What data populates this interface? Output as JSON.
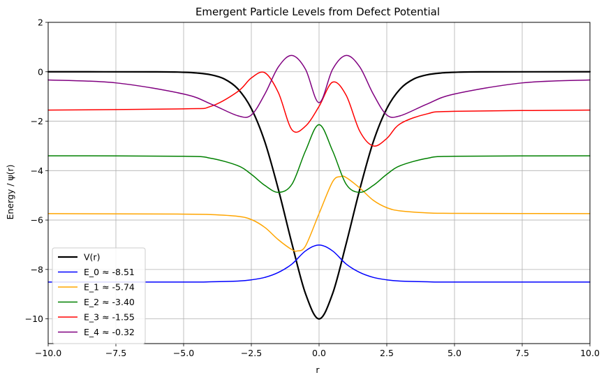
{
  "chart_data": {
    "type": "line",
    "title": "Emergent Particle Levels from Defect Potential",
    "xlabel": "r",
    "ylabel": "Energy / ψ(r)",
    "xlim": [
      -10,
      10
    ],
    "ylim": [
      -11,
      2
    ],
    "xticks": [
      -10,
      -7.5,
      -5,
      -2.5,
      0,
      2.5,
      5,
      7.5,
      10
    ],
    "xtick_labels": [
      "−10.0",
      "−7.5",
      "−5.0",
      "−2.5",
      "0.0",
      "2.5",
      "5.0",
      "7.5",
      "10.0"
    ],
    "yticks": [
      -10,
      -8,
      -6,
      -4,
      -2,
      0,
      2
    ],
    "ytick_labels": [
      "−10",
      "−8",
      "−6",
      "−4",
      "−2",
      "0",
      "2"
    ],
    "grid": true,
    "legend_position": "lower-left",
    "series": [
      {
        "name": "V(r)",
        "color": "#000000",
        "width": 2.2,
        "x": [
          -10,
          -6,
          -5,
          -4.5,
          -4,
          -3.5,
          -3,
          -2.5,
          -2,
          -1.5,
          -1,
          -0.5,
          0,
          0.5,
          1,
          1.5,
          2,
          2.5,
          3,
          3.5,
          4,
          4.5,
          5,
          6,
          10
        ],
        "y": [
          0,
          -0.003,
          -0.02,
          -0.05,
          -0.12,
          -0.29,
          -0.69,
          -1.49,
          -2.84,
          -4.77,
          -6.96,
          -8.98,
          -10,
          -8.98,
          -6.96,
          -4.77,
          -2.84,
          -1.49,
          -0.69,
          -0.29,
          -0.12,
          -0.05,
          -0.02,
          -0.003,
          0
        ]
      },
      {
        "name": "E_0 ≈ -8.51",
        "color": "#0000ff",
        "width": 1.5,
        "x": [
          -10,
          -5,
          -4,
          -3,
          -2.5,
          -2,
          -1.5,
          -1,
          -0.5,
          0,
          0.5,
          1,
          1.5,
          2,
          2.5,
          3,
          4,
          5,
          10
        ],
        "y": [
          -8.51,
          -8.51,
          -8.5,
          -8.47,
          -8.42,
          -8.32,
          -8.12,
          -7.78,
          -7.25,
          -7.01,
          -7.25,
          -7.78,
          -8.12,
          -8.32,
          -8.42,
          -8.47,
          -8.5,
          -8.51,
          -8.51
        ]
      },
      {
        "name": "E_1 ≈ -5.74",
        "color": "#ffa500",
        "width": 1.5,
        "x": [
          -10,
          -5,
          -4,
          -3,
          -2.5,
          -2,
          -1.5,
          -1,
          -0.8,
          -0.5,
          0,
          0.5,
          0.8,
          1,
          1.5,
          2,
          2.5,
          3,
          4,
          5,
          10
        ],
        "y": [
          -5.74,
          -5.76,
          -5.78,
          -5.85,
          -5.98,
          -6.3,
          -6.8,
          -7.2,
          -7.25,
          -7.05,
          -5.74,
          -4.45,
          -4.24,
          -4.28,
          -4.7,
          -5.2,
          -5.5,
          -5.63,
          -5.71,
          -5.73,
          -5.74
        ]
      },
      {
        "name": "E_2 ≈ -3.40",
        "color": "#008000",
        "width": 1.5,
        "x": [
          -10,
          -5,
          -4,
          -3,
          -2.5,
          -2,
          -1.5,
          -1,
          -0.5,
          0,
          0.5,
          1,
          1.5,
          2,
          2.5,
          3,
          4,
          5,
          10
        ],
        "y": [
          -3.4,
          -3.42,
          -3.5,
          -3.8,
          -4.15,
          -4.6,
          -4.88,
          -4.55,
          -3.2,
          -2.14,
          -3.2,
          -4.55,
          -4.88,
          -4.6,
          -4.15,
          -3.8,
          -3.5,
          -3.42,
          -3.4
        ]
      },
      {
        "name": "E_3 ≈ -1.55",
        "color": "#ff0000",
        "width": 1.5,
        "x": [
          -10,
          -5,
          -4,
          -3,
          -2.5,
          -2,
          -1.5,
          -1,
          -0.5,
          0,
          0.5,
          1,
          1.5,
          2,
          2.5,
          3,
          4,
          5,
          10
        ],
        "y": [
          -1.55,
          -1.5,
          -1.4,
          -0.8,
          -0.25,
          -0.04,
          -0.85,
          -2.35,
          -2.2,
          -1.4,
          -0.42,
          -0.95,
          -2.4,
          -3.0,
          -2.7,
          -2.1,
          -1.7,
          -1.6,
          -1.55
        ]
      },
      {
        "name": "E_4 ≈ -0.32",
        "color": "#800080",
        "width": 1.5,
        "x": [
          -10,
          -7.5,
          -5,
          -4,
          -3,
          -2.5,
          -2,
          -1.5,
          -1,
          -0.5,
          0,
          0.5,
          1,
          1.5,
          2,
          2.5,
          3,
          4,
          5,
          7.5,
          10
        ],
        "y": [
          -0.33,
          -0.45,
          -0.9,
          -1.3,
          -1.78,
          -1.75,
          -0.9,
          0.2,
          0.66,
          0.1,
          -1.25,
          0.1,
          0.66,
          0.2,
          -0.9,
          -1.75,
          -1.78,
          -1.3,
          -0.9,
          -0.45,
          -0.33
        ]
      }
    ]
  }
}
